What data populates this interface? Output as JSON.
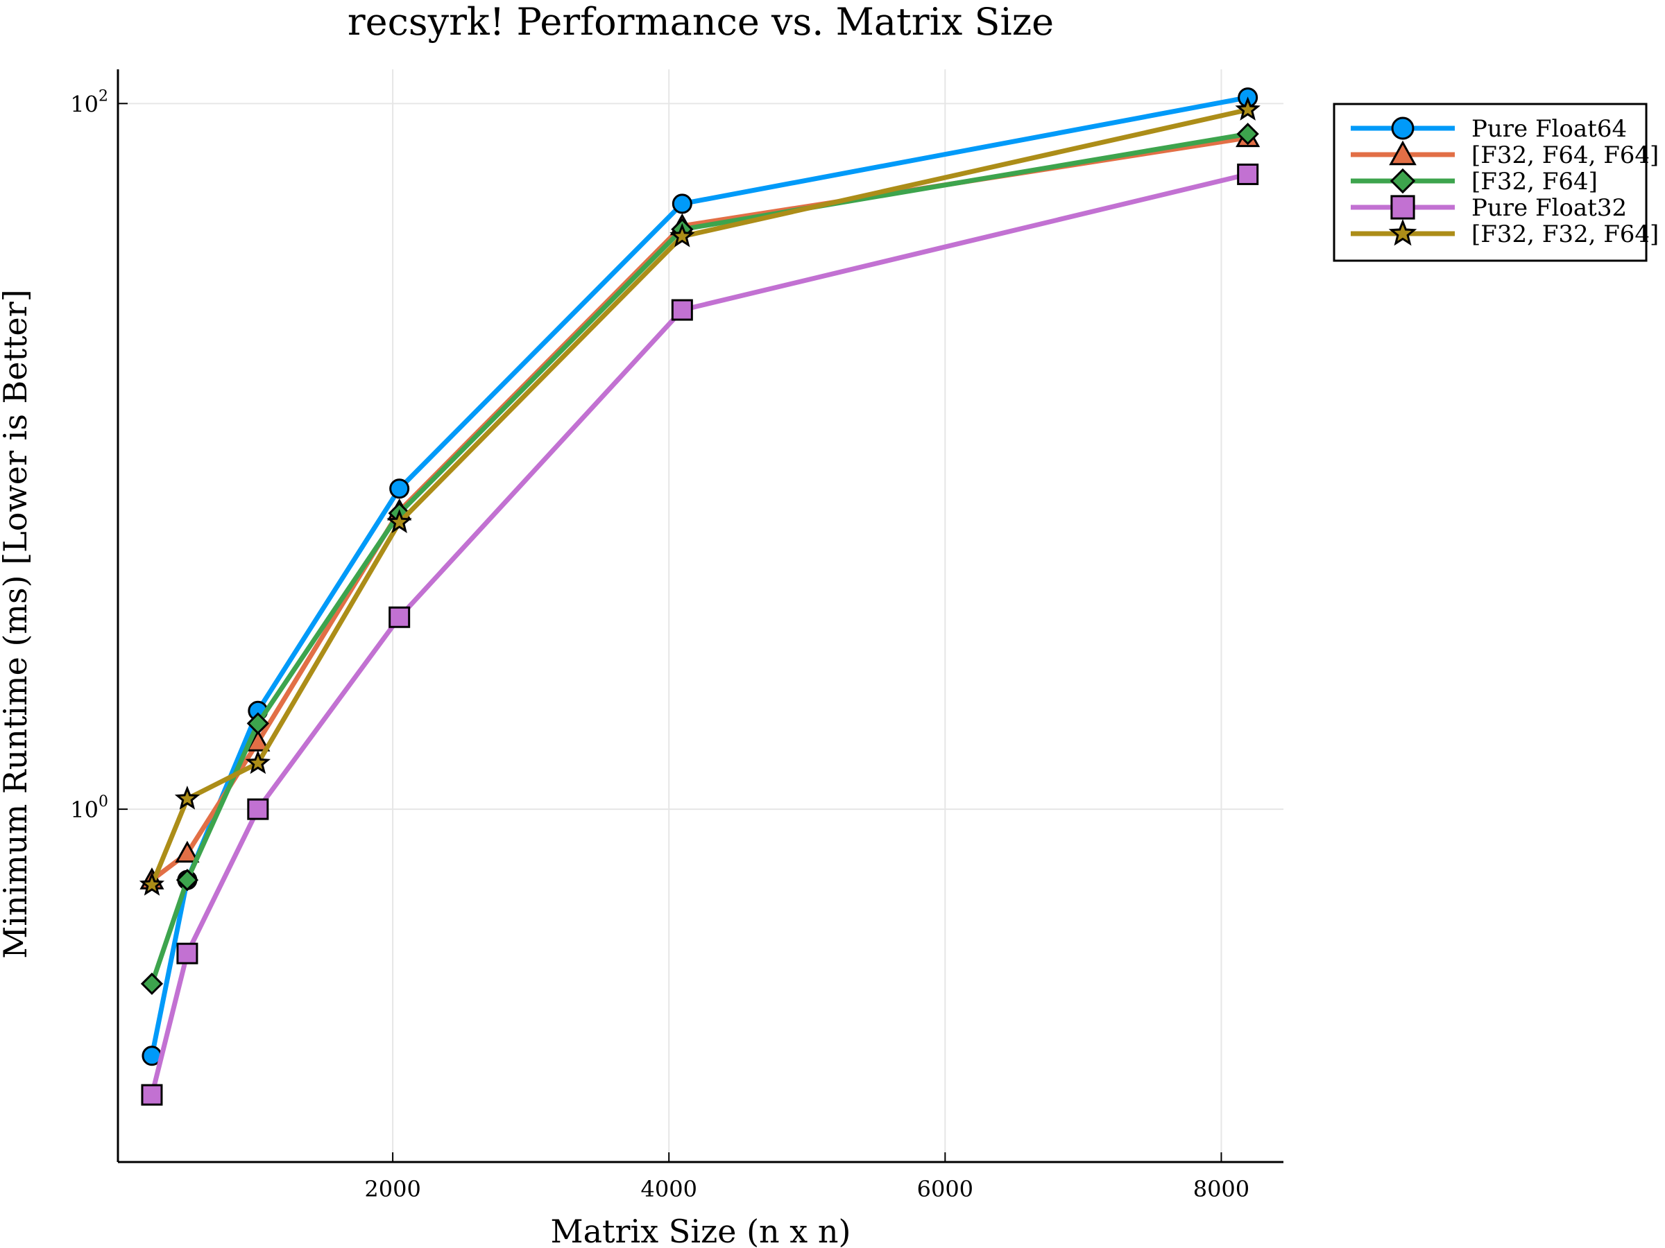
{
  "chart_data": {
    "type": "line",
    "title": "recsyrk! Performance vs. Matrix Size",
    "xlabel": "Matrix Size (n x n)",
    "ylabel": "Minimum Runtime (ms) [Lower is Better]",
    "x": [
      256,
      512,
      1024,
      2048,
      4096,
      8192
    ],
    "xlim": [
      10,
      8450
    ],
    "xticks": [
      2000,
      4000,
      6000,
      8000
    ],
    "xtick_labels": [
      "2000",
      "4000",
      "6000",
      "8000"
    ],
    "yscale": "log10",
    "ylim": [
      0.1,
      125
    ],
    "yticks": [
      {
        "value": 1,
        "base": "10",
        "exp": "0"
      },
      {
        "value": 100,
        "base": "10",
        "exp": "2"
      }
    ],
    "grid": true,
    "legend_position": "top-right",
    "series": [
      {
        "name": "Pure Float64",
        "color": "#009af9",
        "marker": "circle",
        "values": [
          0.2,
          0.63,
          1.9,
          8.1,
          52,
          104
        ]
      },
      {
        "name": "[F32, F64, F64]",
        "color": "#e26f46",
        "marker": "triangle",
        "values": [
          0.63,
          0.75,
          1.55,
          7.0,
          45,
          80
        ]
      },
      {
        "name": "[F32, F64]",
        "color": "#3da44d",
        "marker": "diamond",
        "values": [
          0.32,
          0.63,
          1.75,
          6.9,
          44,
          82
        ]
      },
      {
        "name": "Pure Float32",
        "color": "#c271d2",
        "marker": "square",
        "values": [
          0.155,
          0.39,
          1.0,
          3.5,
          26,
          63
        ]
      },
      {
        "name": "[F32, F32, F64]",
        "color": "#ac8d18",
        "marker": "star",
        "values": [
          0.61,
          1.07,
          1.35,
          6.5,
          42,
          96
        ]
      }
    ]
  }
}
